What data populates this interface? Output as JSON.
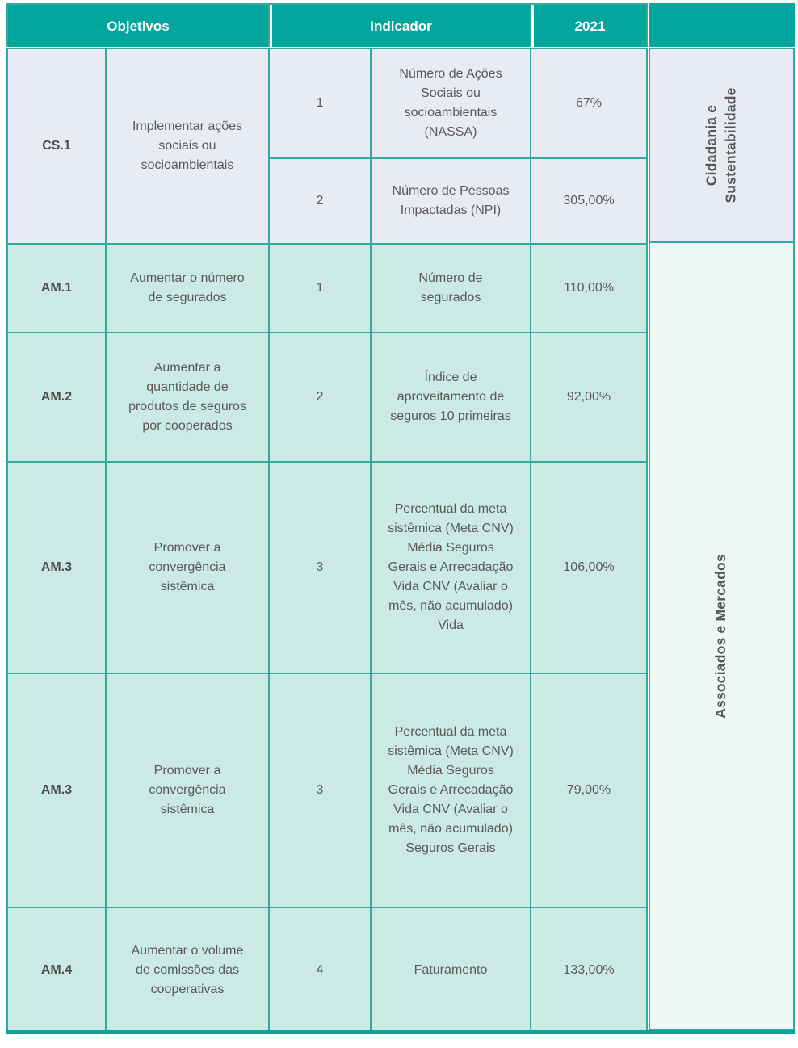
{
  "colors": {
    "header_teal": "#03A69D",
    "grid_teal": "#35A99F",
    "cs_row_bg": "#E8EBF3",
    "am_row_bg": "#CCEAE4",
    "am_side_bg": "#EDF7F4",
    "body_text": "#595959",
    "header_text": "#FFFFFF",
    "label_text": "#555555"
  },
  "header": {
    "objetivos": "Objetivos",
    "indicador": "Indicador",
    "year": "2021"
  },
  "cs_group": {
    "code": "CS.1",
    "objective": "Implementar ações sociais ou socioambientais",
    "category": "Cidadania e Sustentabilidade",
    "indicators": [
      {
        "num": "1",
        "name": "Número de Ações Sociais ou socioambientais (NASSA)",
        "value": "67%"
      },
      {
        "num": "2",
        "name": "Número de Pessoas Impactadas (NPI)",
        "value": "305,00%"
      }
    ]
  },
  "am_group": {
    "category": "Associados e Mercados",
    "rows": [
      {
        "code": "AM.1",
        "objective": "Aumentar o número de segurados",
        "num": "1",
        "name": "Número de segurados",
        "value": "110,00%"
      },
      {
        "code": "AM.2",
        "objective": "Aumentar a quantidade de produtos de seguros por cooperados",
        "num": "2",
        "name": "Índice de aproveitamento de seguros 10 primeiras",
        "value": "92,00%"
      },
      {
        "code": "AM.3",
        "objective": "Promover a convergência sistêmica",
        "num": "3",
        "name": "Percentual da meta sistêmica (Meta CNV) Média Seguros Gerais e Arrecadação Vida CNV (Avaliar o mês, não acumulado) Vida",
        "value": "106,00%"
      },
      {
        "code": "AM.3",
        "objective": "Promover a convergência sistêmica",
        "num": "3",
        "name": "Percentual da meta sistêmica (Meta CNV) Média Seguros Gerais e Arrecadação Vida CNV (Avaliar o mês, não acumulado) Seguros Gerais",
        "value": "79,00%"
      },
      {
        "code": "AM.4",
        "objective": "Aumentar o volume de comissões das cooperativas",
        "num": "4",
        "name": "Faturamento",
        "value": "133,00%"
      }
    ]
  }
}
